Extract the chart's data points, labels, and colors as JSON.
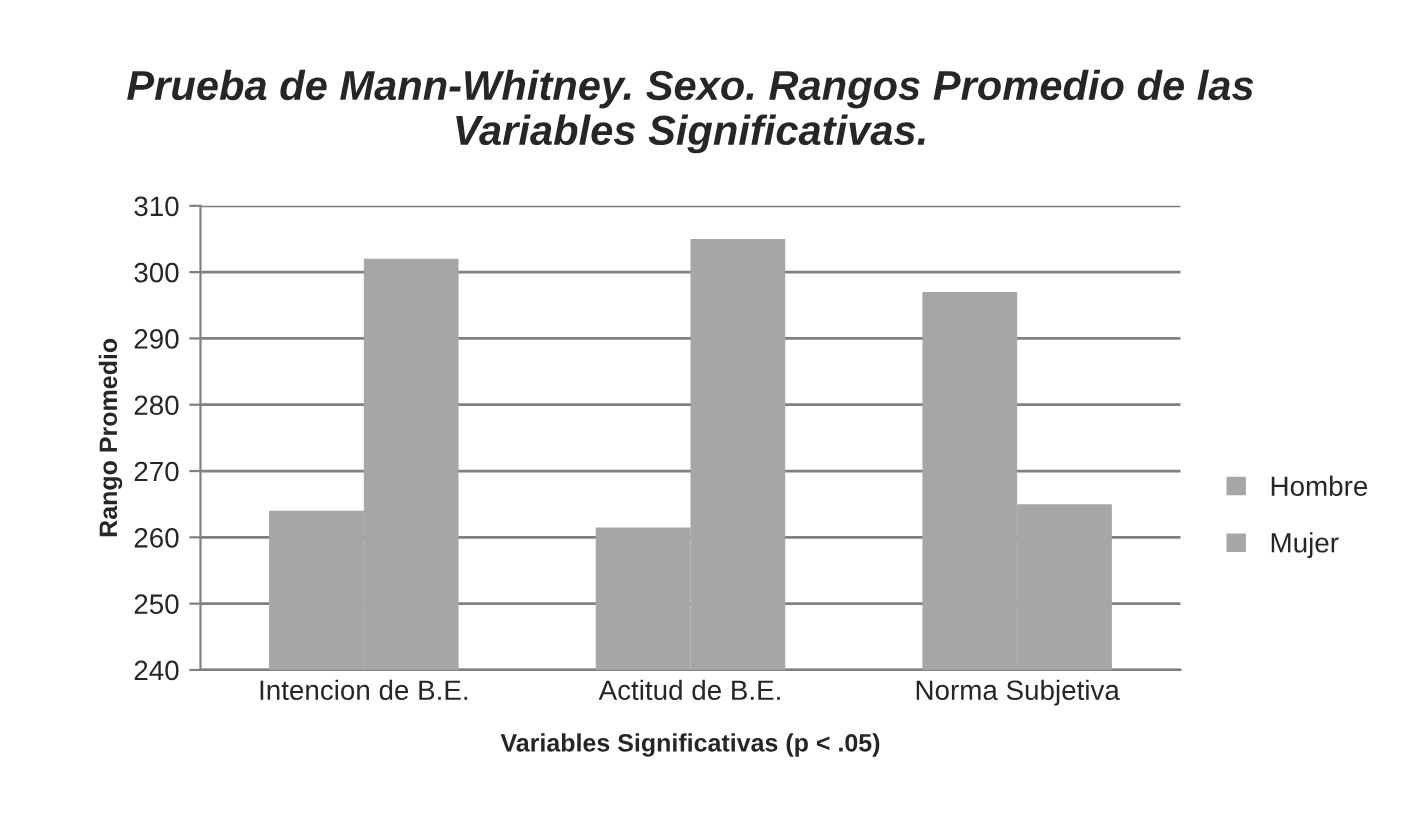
{
  "chart_data": {
    "type": "bar",
    "title": "Prueba de Mann-Whitney. Sexo. Rangos Promedio de las\nVariables Significativas.",
    "xlabel": "Variables Significativas (p < .05)",
    "ylabel": "Rango Promedio",
    "categories": [
      "Intencion de B.E.",
      "Actitud de B.E.",
      "Norma Subjetiva"
    ],
    "series": [
      {
        "name": "Hombre",
        "color": "#a6a6a6",
        "values": [
          264,
          261.5,
          297
        ]
      },
      {
        "name": "Mujer",
        "color": "#a6a6a6",
        "values": [
          302,
          305,
          265
        ]
      }
    ],
    "ylim": [
      240,
      310
    ],
    "yticks": [
      240,
      250,
      260,
      270,
      280,
      290,
      300,
      310
    ],
    "grid": "y",
    "legend": "right"
  }
}
